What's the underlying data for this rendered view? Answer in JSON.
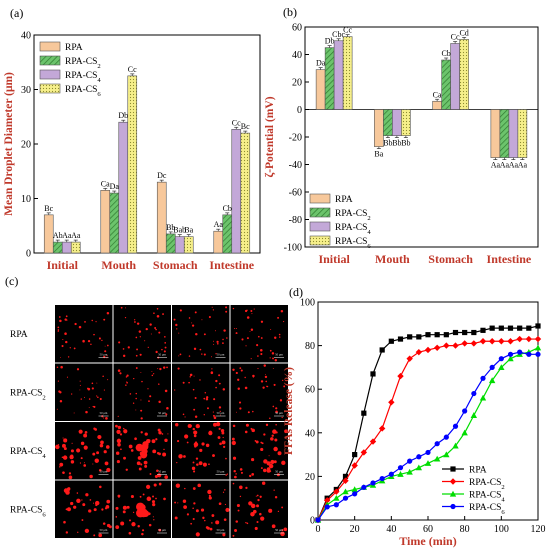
{
  "chart_data": [
    {
      "panel": "(a)",
      "type": "bar",
      "ylabel": "Mean Droplet Diameter (μm)",
      "ylim": [
        0,
        40
      ],
      "yticks": [
        0,
        10,
        20,
        30,
        40
      ],
      "categories": [
        "Initial",
        "Mouth",
        "Stomach",
        "Intestine"
      ],
      "series": [
        {
          "name": "RPA",
          "values": [
            7.0,
            11.5,
            13.0,
            4.0
          ],
          "letters": [
            "Bc",
            "Ca",
            "Dc",
            "Aa"
          ],
          "color": "#f7c89b",
          "pattern": "none"
        },
        {
          "name": "RPA-CS2",
          "values": [
            2.0,
            11.0,
            3.5,
            7.0
          ],
          "letters": [
            "Ab",
            "Da",
            "Bb",
            "Cb"
          ],
          "color": "#6cc46c",
          "pattern": "hatch"
        },
        {
          "name": "RPA-CS4",
          "values": [
            2.0,
            24.0,
            3.0,
            22.7
          ],
          "letters": [
            "Aa",
            "Db",
            "Bab",
            "Cc"
          ],
          "color": "#c3a8d8",
          "pattern": "none"
        },
        {
          "name": "RPA-CS6",
          "values": [
            2.0,
            32.5,
            3.0,
            22.0
          ],
          "letters": [
            "Aa",
            "Cc",
            "Ba",
            "Bc"
          ],
          "color": "#f6ef8a",
          "pattern": "dots"
        }
      ],
      "legend_location": "top-left"
    },
    {
      "panel": "(b)",
      "type": "bar",
      "ylabel": "ζ-Potential (mV)",
      "ylim": [
        -100,
        60
      ],
      "yticks": [
        -100,
        -80,
        -60,
        -40,
        -20,
        0,
        20,
        40,
        60
      ],
      "categories": [
        "Initial",
        "Mouth",
        "Stomach",
        "Intestine"
      ],
      "series": [
        {
          "name": "RPA",
          "values": [
            29,
            -27,
            6,
            -35
          ],
          "letters": [
            "Da",
            "Ba",
            "Ca",
            "Aa"
          ],
          "color": "#f7c89b",
          "pattern": "none"
        },
        {
          "name": "RPA-CS2",
          "values": [
            45,
            -19,
            36,
            -35
          ],
          "letters": [
            "Db",
            "Bb",
            "Cb",
            "Aa"
          ],
          "color": "#6cc46c",
          "pattern": "hatch"
        },
        {
          "name": "RPA-CS4",
          "values": [
            50,
            -19,
            48,
            -35
          ],
          "letters": [
            "Cbc",
            "Bb",
            "Cc",
            "Aa"
          ],
          "color": "#c3a8d8",
          "pattern": "none"
        },
        {
          "name": "RPA-CS6",
          "values": [
            53,
            -19,
            51,
            -35
          ],
          "letters": [
            "Cc",
            "Bb",
            "Cd",
            "Aa"
          ],
          "color": "#f6ef8a",
          "pattern": "dots"
        }
      ],
      "legend_location": "bottom-left"
    },
    {
      "panel": "(d)",
      "type": "line",
      "xlabel": "Time (min)",
      "ylabel": "FFAs Release (%)",
      "xlim": [
        0,
        120
      ],
      "ylim": [
        0,
        100
      ],
      "xticks": [
        0,
        20,
        40,
        60,
        80,
        100,
        120
      ],
      "yticks": [
        0,
        20,
        40,
        60,
        80,
        100
      ],
      "x": [
        0,
        5,
        10,
        15,
        20,
        25,
        30,
        35,
        40,
        45,
        50,
        55,
        60,
        65,
        70,
        75,
        80,
        85,
        90,
        95,
        100,
        105,
        110,
        115,
        120
      ],
      "series": [
        {
          "name": "RPA",
          "color": "#000000",
          "marker": "square",
          "values": [
            0,
            10,
            14,
            20,
            30,
            49,
            67,
            78,
            82,
            83,
            84,
            84,
            85,
            85,
            85,
            86,
            86,
            86,
            87,
            88,
            88,
            88,
            88,
            88,
            89
          ]
        },
        {
          "name": "RPA-CS2",
          "color": "#ff0000",
          "marker": "diamond",
          "values": [
            0,
            9,
            13,
            18,
            25,
            31,
            36,
            42,
            54,
            66,
            74,
            77,
            78,
            79,
            80,
            80,
            81,
            81,
            82,
            82,
            82,
            82,
            83,
            83,
            83
          ]
        },
        {
          "name": "RPA-CS4",
          "color": "#00dd00",
          "marker": "triangle",
          "values": [
            0,
            7,
            10,
            13,
            14,
            15,
            16,
            18,
            20,
            21,
            22,
            24,
            26,
            28,
            30,
            34,
            40,
            48,
            56,
            64,
            70,
            74,
            76,
            77,
            79
          ]
        },
        {
          "name": "RPA-CS6",
          "color": "#0000ff",
          "marker": "circle",
          "values": [
            0,
            6,
            7,
            10,
            12,
            15,
            17,
            19,
            21,
            24,
            27,
            29,
            31,
            35,
            38,
            43,
            50,
            58,
            65,
            70,
            74,
            76,
            77,
            76,
            76
          ]
        }
      ],
      "legend_location": "bottom-right"
    }
  ],
  "micrographs": {
    "panel": "(c)",
    "rows": [
      "RPA",
      "RPA-CS2",
      "RPA-CS4",
      "RPA-CS6"
    ],
    "columns": 4,
    "scale_label": "50 μm",
    "background": "#000000",
    "droplet_color": "#ff1a1a"
  }
}
